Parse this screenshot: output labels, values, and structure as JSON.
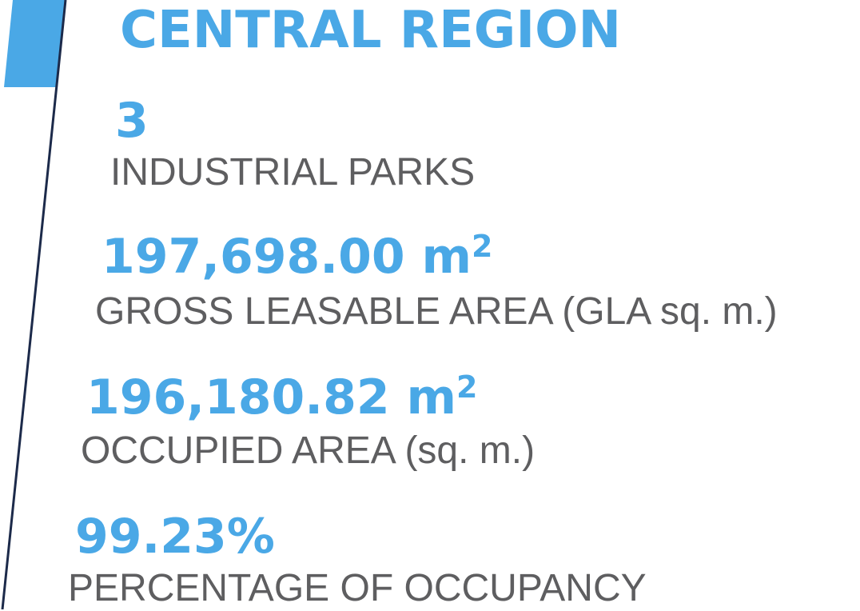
{
  "title": "CENTRAL REGION",
  "colors": {
    "accent": "#4aa8e6",
    "label": "#5e5e60",
    "line": "#1c2a4a"
  },
  "stats": [
    {
      "value": "3",
      "unit": "",
      "label": "INDUSTRIAL PARKS"
    },
    {
      "value": "197,698.00 m",
      "unit": "2",
      "label": "GROSS LEASABLE AREA (GLA sq. m.)"
    },
    {
      "value": "196,180.82 m",
      "unit": "2",
      "label": "OCCUPIED AREA (sq. m.)"
    },
    {
      "value": "99.23%",
      "unit": "",
      "label": "PERCENTAGE OF OCCUPANCY"
    }
  ]
}
